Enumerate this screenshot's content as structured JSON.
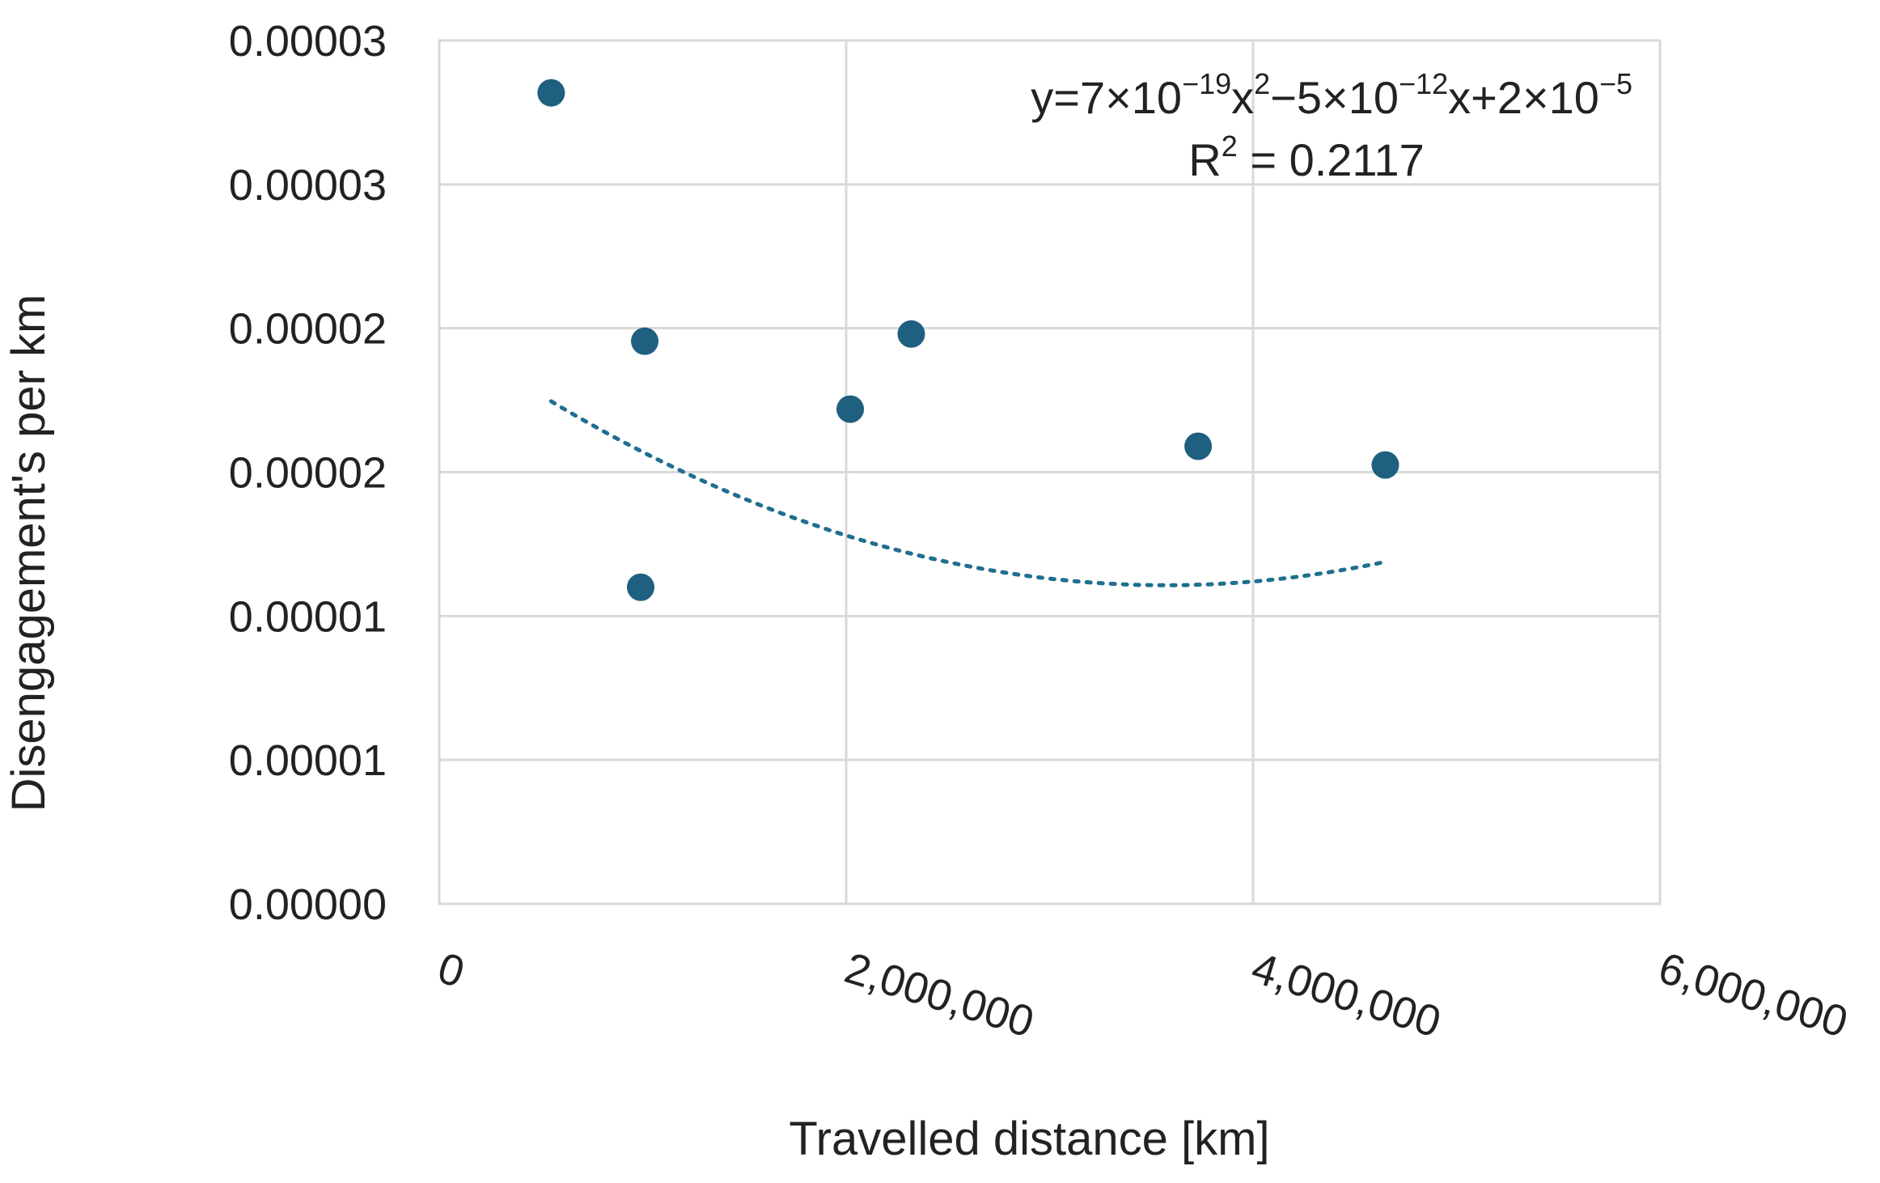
{
  "chart_data": {
    "type": "scatter",
    "title": "",
    "xlabel": "Travelled distance [km]",
    "ylabel": "Disengagement's per km",
    "xlim": [
      0,
      6000000
    ],
    "ylim": [
      0,
      3e-05
    ],
    "x_ticks": [
      0,
      2000000,
      4000000,
      6000000
    ],
    "x_tick_labels": [
      "0",
      "2,000,000",
      "4,000,000",
      "6,000,000"
    ],
    "y_ticks": [
      0,
      5e-06,
      1e-05,
      1.5e-05,
      2e-05,
      2.5e-05,
      3e-05
    ],
    "y_tick_labels": [
      "0.00000",
      "0.00001",
      "0.00001",
      "0.00002",
      "0.00002",
      "0.00003",
      "0.00003"
    ],
    "grid": true,
    "series": [
      {
        "color": "#1f5f7f",
        "points": [
          {
            "x": 550000,
            "y": 2.818e-05
          },
          {
            "x": 1010000,
            "y": 1.955e-05
          },
          {
            "x": 990000,
            "y": 1.1e-05
          },
          {
            "x": 2020000,
            "y": 1.719e-05
          },
          {
            "x": 2320000,
            "y": 1.98e-05
          },
          {
            "x": 3730000,
            "y": 1.59e-05
          },
          {
            "x": 4650000,
            "y": 1.525e-05
          }
        ]
      }
    ],
    "trendline": {
      "type": "polynomial",
      "order": 2,
      "style": "dotted",
      "color": "#1f6f8f",
      "coefficients": {
        "a": 7e-19,
        "b": -5e-12,
        "c": 2e-05
      },
      "x_range": [
        550000,
        4650000
      ],
      "equation": {
        "base": "y=7×10",
        "exp1": "−19",
        "mid1": "x",
        "exp2": "2",
        "mid2": "−5×10",
        "exp3": "−12",
        "mid3": "x+2×10",
        "exp4": "−5"
      },
      "r2": {
        "prefix": "R",
        "sup": "2",
        "suffix": " = 0.2117"
      }
    }
  }
}
